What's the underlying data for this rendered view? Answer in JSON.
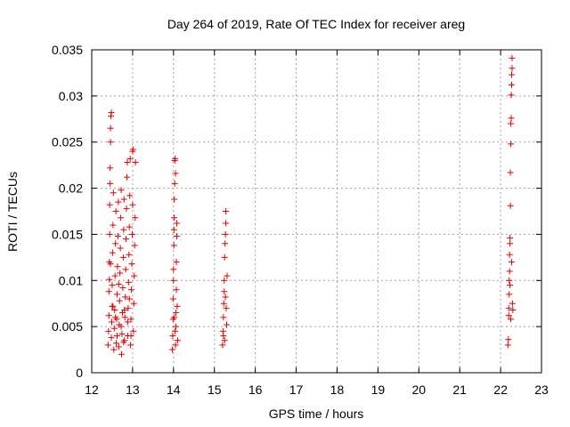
{
  "chart_data": {
    "type": "scatter",
    "title": "Day 264 of 2019, Rate Of TEC Index for receiver areg",
    "xlabel": "GPS time / hours",
    "ylabel": "ROTI / TECUs",
    "xlim": [
      12,
      23
    ],
    "ylim": [
      0,
      0.035
    ],
    "xticks": [
      "12",
      "13",
      "14",
      "15",
      "16",
      "17",
      "18",
      "19",
      "20",
      "21",
      "22",
      "23"
    ],
    "yticks": [
      "0",
      "0.005",
      "0.01",
      "0.015",
      "0.02",
      "0.025",
      "0.03",
      "0.035"
    ],
    "grid": true,
    "marker": "+",
    "color": "#e00000",
    "series": [
      {
        "points": [
          [
            12.4,
            0.003
          ],
          [
            12.41,
            0.0045
          ],
          [
            12.42,
            0.0062
          ],
          [
            12.42,
            0.0088
          ],
          [
            12.43,
            0.0101
          ],
          [
            12.43,
            0.012
          ],
          [
            12.44,
            0.015
          ],
          [
            12.44,
            0.0182
          ],
          [
            12.45,
            0.0205
          ],
          [
            12.45,
            0.0222
          ],
          [
            12.46,
            0.025
          ],
          [
            12.46,
            0.0265
          ],
          [
            12.47,
            0.0278
          ],
          [
            12.48,
            0.0282
          ],
          [
            12.48,
            0.0038
          ],
          [
            12.49,
            0.0055
          ],
          [
            12.5,
            0.0072
          ],
          [
            12.5,
            0.0095
          ],
          [
            12.51,
            0.013
          ],
          [
            12.52,
            0.016
          ],
          [
            12.53,
            0.0195
          ],
          [
            12.54,
            0.0025
          ],
          [
            12.55,
            0.0048
          ],
          [
            12.56,
            0.0068
          ],
          [
            12.57,
            0.0105
          ],
          [
            12.58,
            0.014
          ],
          [
            12.59,
            0.0175
          ],
          [
            12.6,
            0.0032
          ],
          [
            12.61,
            0.0058
          ],
          [
            12.62,
            0.0085
          ],
          [
            12.63,
            0.0115
          ],
          [
            12.64,
            0.0148
          ],
          [
            12.65,
            0.0185
          ],
          [
            12.66,
            0.0028
          ],
          [
            12.67,
            0.0052
          ],
          [
            12.68,
            0.0078
          ],
          [
            12.69,
            0.0108
          ],
          [
            12.7,
            0.0135
          ],
          [
            12.71,
            0.0168
          ],
          [
            12.72,
            0.0198
          ],
          [
            12.73,
            0.002
          ],
          [
            12.74,
            0.0042
          ],
          [
            12.75,
            0.0065
          ],
          [
            12.76,
            0.0092
          ],
          [
            12.77,
            0.0125
          ],
          [
            12.78,
            0.0155
          ],
          [
            12.79,
            0.0188
          ],
          [
            12.8,
            0.0035
          ],
          [
            12.81,
            0.006
          ],
          [
            12.82,
            0.0082
          ],
          [
            12.83,
            0.0112
          ],
          [
            12.84,
            0.0145
          ],
          [
            12.85,
            0.0178
          ],
          [
            12.86,
            0.0212
          ],
          [
            12.87,
            0.0228
          ],
          [
            12.88,
            0.004
          ],
          [
            12.89,
            0.007
          ],
          [
            12.9,
            0.0098
          ],
          [
            12.91,
            0.0128
          ],
          [
            12.92,
            0.0158
          ],
          [
            12.93,
            0.0192
          ],
          [
            12.94,
            0.0232
          ],
          [
            12.95,
            0.003
          ],
          [
            12.96,
            0.0058
          ],
          [
            12.97,
            0.009
          ],
          [
            12.98,
            0.0118
          ],
          [
            12.99,
            0.015
          ],
          [
            13.0,
            0.0182
          ],
          [
            13.0,
            0.024
          ],
          [
            13.01,
            0.0242
          ],
          [
            13.02,
            0.0045
          ],
          [
            13.03,
            0.0075
          ],
          [
            13.04,
            0.0105
          ],
          [
            13.05,
            0.0138
          ],
          [
            13.06,
            0.0168
          ],
          [
            13.07,
            0.0228
          ],
          [
            12.52,
            0.0072
          ],
          [
            12.58,
            0.006
          ],
          [
            12.66,
            0.0096
          ],
          [
            12.72,
            0.005
          ],
          [
            12.8,
            0.0068
          ],
          [
            12.88,
            0.0055
          ],
          [
            12.96,
            0.004
          ],
          [
            12.46,
            0.0118
          ],
          [
            12.62,
            0.004
          ],
          [
            12.78,
            0.0033
          ],
          [
            12.92,
            0.008
          ]
        ]
      },
      {
        "points": [
          [
            13.97,
            0.0025
          ],
          [
            13.98,
            0.004
          ],
          [
            13.99,
            0.0058
          ],
          [
            13.99,
            0.008
          ],
          [
            14.0,
            0.01
          ],
          [
            14.0,
            0.0112
          ],
          [
            14.01,
            0.0138
          ],
          [
            14.01,
            0.0155
          ],
          [
            14.02,
            0.0168
          ],
          [
            14.02,
            0.0188
          ],
          [
            14.03,
            0.0205
          ],
          [
            14.03,
            0.023
          ],
          [
            14.04,
            0.0232
          ],
          [
            14.05,
            0.0216
          ],
          [
            14.05,
            0.003
          ],
          [
            14.06,
            0.005
          ],
          [
            14.06,
            0.0065
          ],
          [
            14.07,
            0.009
          ],
          [
            14.07,
            0.012
          ],
          [
            14.08,
            0.0148
          ],
          [
            14.08,
            0.0162
          ],
          [
            14.09,
            0.0072
          ],
          [
            14.1,
            0.0035
          ],
          [
            14.04,
            0.0045
          ],
          [
            14.02,
            0.006
          ]
        ]
      },
      {
        "points": [
          [
            15.2,
            0.003
          ],
          [
            15.21,
            0.0045
          ],
          [
            15.22,
            0.006
          ],
          [
            15.23,
            0.0075
          ],
          [
            15.24,
            0.0088
          ],
          [
            15.24,
            0.01
          ],
          [
            15.25,
            0.0125
          ],
          [
            15.26,
            0.014
          ],
          [
            15.27,
            0.015
          ],
          [
            15.28,
            0.0162
          ],
          [
            15.28,
            0.0175
          ],
          [
            15.29,
            0.007
          ],
          [
            15.3,
            0.0052
          ],
          [
            15.31,
            0.0105
          ],
          [
            15.25,
            0.0035
          ],
          [
            15.27,
            0.0082
          ],
          [
            15.22,
            0.004
          ]
        ]
      },
      {
        "points": [
          [
            22.18,
            0.003
          ],
          [
            22.19,
            0.0036
          ],
          [
            22.2,
            0.0062
          ],
          [
            22.2,
            0.007
          ],
          [
            22.21,
            0.0085
          ],
          [
            22.21,
            0.01
          ],
          [
            22.22,
            0.011
          ],
          [
            22.22,
            0.0128
          ],
          [
            22.23,
            0.014
          ],
          [
            22.23,
            0.0146
          ],
          [
            22.24,
            0.0181
          ],
          [
            22.24,
            0.0217
          ],
          [
            22.25,
            0.0248
          ],
          [
            22.25,
            0.027
          ],
          [
            22.26,
            0.0276
          ],
          [
            22.26,
            0.0301
          ],
          [
            22.27,
            0.0312
          ],
          [
            22.27,
            0.0323
          ],
          [
            22.28,
            0.033
          ],
          [
            22.28,
            0.0341
          ],
          [
            22.29,
            0.0075
          ],
          [
            22.3,
            0.0068
          ],
          [
            22.25,
            0.0058
          ],
          [
            22.23,
            0.0095
          ],
          [
            22.27,
            0.012
          ]
        ]
      }
    ]
  }
}
